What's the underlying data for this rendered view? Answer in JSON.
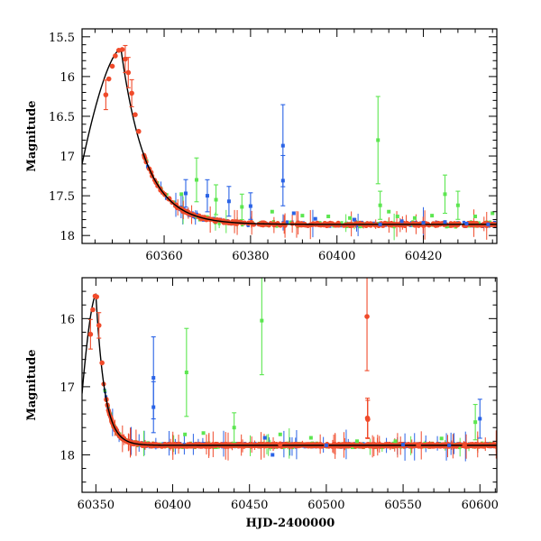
{
  "chart_data": [
    {
      "type": "scatter",
      "panel": "top",
      "ylabel": "Magnitude",
      "xlabel": "",
      "xlim": [
        60341,
        60437
      ],
      "ylim": [
        18.1,
        15.4
      ],
      "y_inverted": true,
      "xticks": [
        60360,
        60380,
        60400,
        60420
      ],
      "yticks": [
        15.5,
        16,
        16.5,
        17,
        17.5,
        18
      ],
      "ytick_labels": [
        "15.5",
        "16",
        "16.5",
        "17",
        "17.5",
        "18"
      ],
      "colors": {
        "red": "#f04a2a",
        "green": "#5ce650",
        "blue": "#2a63e6",
        "model": "#000000"
      },
      "model": {
        "peak_t": 60350,
        "peak_mag": 15.65,
        "baseline": 17.86
      },
      "series": [
        {
          "color": "red",
          "points": [
            [
              60346.5,
              16.23
            ],
            [
              60347.2,
              16.03
            ],
            [
              60348.0,
              15.87
            ],
            [
              60348.7,
              15.74
            ],
            [
              60349.5,
              15.67
            ],
            [
              60350.3,
              15.66
            ],
            [
              60351.0,
              15.78
            ],
            [
              60351.7,
              15.95
            ],
            [
              60352.5,
              16.21
            ],
            [
              60353.3,
              16.48
            ],
            [
              60354.1,
              16.69
            ]
          ]
        },
        {
          "color": "green",
          "points": [
            [
              60364,
              17.48
            ],
            [
              60367.5,
              17.3
            ],
            [
              60372,
              17.55
            ],
            [
              60378,
              17.64
            ],
            [
              60385,
              17.7
            ],
            [
              60392,
              17.75
            ],
            [
              60398,
              17.76
            ],
            [
              60403,
              17.78
            ],
            [
              60409.5,
              16.8
            ],
            [
              60410,
              17.62
            ],
            [
              60412,
              17.7
            ],
            [
              60414,
              17.76
            ],
            [
              60418,
              17.78
            ],
            [
              60422,
              17.75
            ],
            [
              60425,
              17.48
            ],
            [
              60428,
              17.62
            ],
            [
              60432,
              17.76
            ],
            [
              60436,
              17.72
            ]
          ]
        },
        {
          "color": "blue",
          "points": [
            [
              60365,
              17.47
            ],
            [
              60370,
              17.5
            ],
            [
              60375,
              17.57
            ],
            [
              60380,
              17.63
            ],
            [
              60387.5,
              16.87
            ],
            [
              60387.5,
              17.31
            ],
            [
              60390,
              17.72
            ],
            [
              60395,
              17.79
            ],
            [
              60404,
              17.8
            ],
            [
              60410,
              17.86
            ],
            [
              60415,
              17.82
            ],
            [
              60420,
              17.84
            ],
            [
              60425,
              17.83
            ],
            [
              60430,
              17.85
            ],
            [
              60435,
              17.86
            ]
          ]
        }
      ]
    },
    {
      "type": "scatter",
      "panel": "bottom",
      "ylabel": "Magnitude",
      "xlabel": "HJD-2400000",
      "xlim": [
        60341,
        60611
      ],
      "ylim": [
        18.55,
        15.4
      ],
      "y_inverted": true,
      "xticks": [
        60350,
        60400,
        60450,
        60500,
        60550,
        60600
      ],
      "yticks": [
        16,
        17,
        18
      ],
      "ytick_labels": [
        "16",
        "17",
        "18"
      ],
      "model": {
        "peak_t": 60350,
        "peak_mag": 15.65,
        "baseline": 17.86
      },
      "series": [
        {
          "color": "red",
          "points": [
            [
              60346.5,
              16.23
            ],
            [
              60348.0,
              15.87
            ],
            [
              60349.5,
              15.67
            ],
            [
              60350.5,
              15.68
            ],
            [
              60352.0,
              16.1
            ],
            [
              60354.0,
              16.65
            ],
            [
              60526.5,
              15.97
            ],
            [
              60526.8,
              17.46
            ],
            [
              60527,
              17.48
            ],
            [
              60500,
              17.86
            ],
            [
              60470,
              17.84
            ],
            [
              60560,
              17.86
            ],
            [
              60590,
              17.87
            ]
          ]
        },
        {
          "color": "green",
          "points": [
            [
              60409,
              16.79
            ],
            [
              60458,
              16.03
            ],
            [
              60408,
              17.7
            ],
            [
              60420,
              17.68
            ],
            [
              60440,
              17.6
            ],
            [
              60470,
              17.7
            ],
            [
              60490,
              17.75
            ],
            [
              60520,
              17.8
            ],
            [
              60545,
              17.8
            ],
            [
              60575,
              17.76
            ],
            [
              60597,
              17.52
            ]
          ]
        },
        {
          "color": "blue",
          "points": [
            [
              60387.5,
              16.87
            ],
            [
              60387.5,
              17.3
            ],
            [
              60460,
              17.75
            ],
            [
              60465,
              18.0
            ],
            [
              60500,
              17.86
            ],
            [
              60550,
              17.85
            ],
            [
              60580,
              17.86
            ],
            [
              60600,
              17.47
            ]
          ]
        }
      ]
    }
  ]
}
